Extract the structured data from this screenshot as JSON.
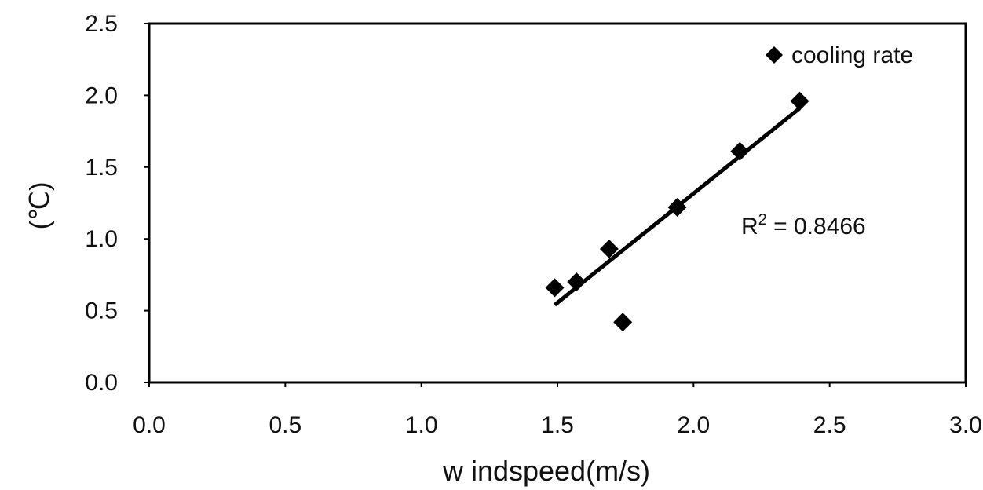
{
  "chart_data": {
    "type": "scatter",
    "xlabel": "w indspeed(m/s)",
    "ylabel": "(℃)",
    "xlim": [
      0,
      3
    ],
    "ylim": [
      0,
      2.5
    ],
    "x_ticks": [
      "0.0",
      "0.5",
      "1.0",
      "1.5",
      "2.0",
      "2.5",
      "3.0"
    ],
    "y_ticks": [
      "0.0",
      "0.5",
      "1.0",
      "1.5",
      "2.0",
      "2.5"
    ],
    "series": [
      {
        "name": "cooling rate",
        "marker": "diamond",
        "color": "#000000",
        "points": [
          {
            "x": 1.49,
            "y": 0.66
          },
          {
            "x": 1.57,
            "y": 0.7
          },
          {
            "x": 1.69,
            "y": 0.93
          },
          {
            "x": 1.74,
            "y": 0.42
          },
          {
            "x": 1.94,
            "y": 1.22
          },
          {
            "x": 2.17,
            "y": 1.61
          },
          {
            "x": 2.39,
            "y": 1.96
          }
        ]
      }
    ],
    "trendline": {
      "type": "linear",
      "x_range": [
        1.49,
        2.39
      ],
      "y_range": [
        0.54,
        1.91
      ]
    },
    "annotation": {
      "base": "R",
      "sup": "2",
      "rest": " = 0.8466"
    },
    "legend_position": "top-right",
    "grid": false
  }
}
